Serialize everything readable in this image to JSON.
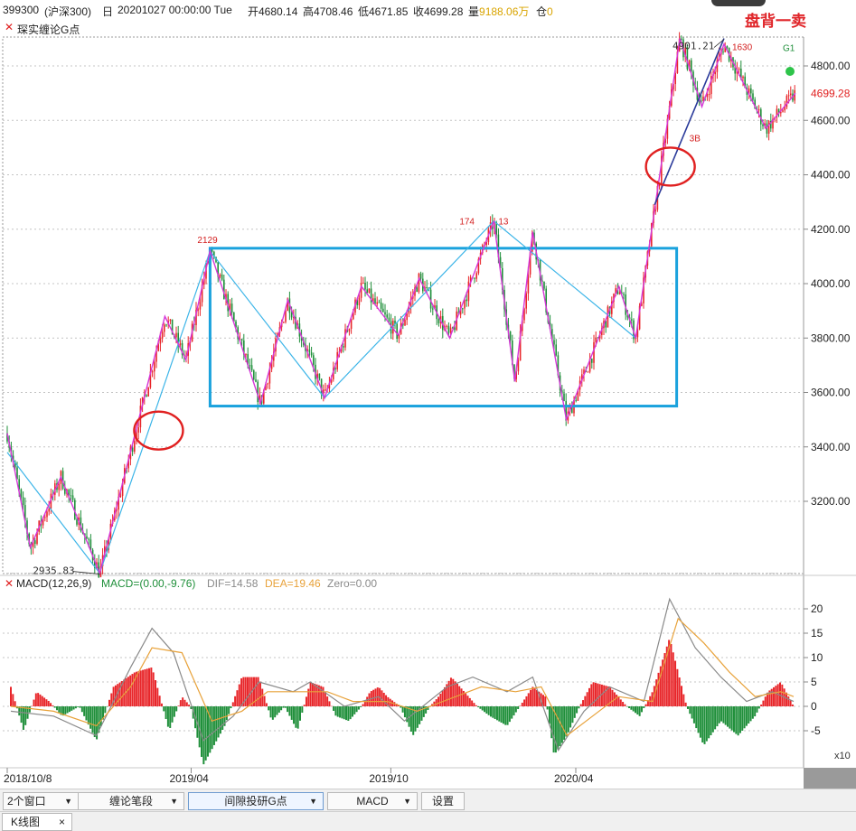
{
  "header": {
    "code": "399300",
    "name": "(沪深300)",
    "period": "日",
    "datetime": "20201027 00:00:00 Tue",
    "open": "开4680.14",
    "high": "高4708.46",
    "low": "低4671.85",
    "close": "收4699.28",
    "volume": "量9188.06万",
    "position_label": "仓",
    "position_value": "0",
    "sell_signal": "盘背一卖"
  },
  "indicator_title": "琛实缠论G点",
  "colors": {
    "up": "#e8262a",
    "down": "#1f8f3a",
    "stroke_line": "#d636d8",
    "segment_line": "#3db5e8",
    "box": "#1aa2dd",
    "circle": "#e02020",
    "trend_line": "#2a3a9a",
    "dif": "#8a8a8a",
    "dea": "#e8a23a",
    "macd_label": "#1f8f3a"
  },
  "chart_data": [
    {
      "type": "candlestick",
      "title": "399300 (沪深300)",
      "xlabel": "",
      "ylabel": "",
      "ylim": [
        2935.83,
        4901.21
      ],
      "y_ticks": [
        3200.0,
        3400.0,
        3600.0,
        3800.0,
        4000.0,
        4200.0,
        4400.0,
        4600.0,
        4800.0
      ],
      "y_tick_labels": [
        "3200.00",
        "3400.00",
        "3600.00",
        "3800.00",
        "4000.00",
        "4200.00",
        "4400.00",
        "4600.00",
        "4800.00"
      ],
      "x_labels": [
        "2018/10/8",
        "2019/04",
        "2019/10",
        "2020/04"
      ],
      "last_price": 4699.28,
      "last_price_label": "4699.28",
      "annotations": [
        {
          "text": "2935.83",
          "value": 2935.83
        },
        {
          "text": "4901.21",
          "value": 4901.21
        },
        {
          "text": "2129"
        },
        {
          "text": "174"
        },
        {
          "text": "13"
        },
        {
          "text": "1630"
        },
        {
          "text": "3B"
        },
        {
          "text": "G1"
        }
      ],
      "stroke_pivots": [
        {
          "date": "2018-10-08",
          "value": 3450
        },
        {
          "date": "2018-10-30",
          "value": 3030
        },
        {
          "date": "2018-11-28",
          "value": 3290
        },
        {
          "date": "2019-01-04",
          "value": 2935.83
        },
        {
          "date": "2019-03-07",
          "value": 3880
        },
        {
          "date": "2019-03-27",
          "value": 3720
        },
        {
          "date": "2019-04-19",
          "value": 4120
        },
        {
          "date": "2019-06-06",
          "value": 3560
        },
        {
          "date": "2019-07-02",
          "value": 3940
        },
        {
          "date": "2019-08-06",
          "value": 3580
        },
        {
          "date": "2019-09-10",
          "value": 3990
        },
        {
          "date": "2019-10-15",
          "value": 3810
        },
        {
          "date": "2019-11-04",
          "value": 4020
        },
        {
          "date": "2019-12-03",
          "value": 3800
        },
        {
          "date": "2020-01-14",
          "value": 4230
        },
        {
          "date": "2020-02-03",
          "value": 3640
        },
        {
          "date": "2020-02-20",
          "value": 4190
        },
        {
          "date": "2020-03-23",
          "value": 3500
        },
        {
          "date": "2020-05-12",
          "value": 3990
        },
        {
          "date": "2020-05-28",
          "value": 3800
        },
        {
          "date": "2020-07-09",
          "value": 4901.21
        },
        {
          "date": "2020-07-30",
          "value": 4650
        },
        {
          "date": "2020-08-20",
          "value": 4880
        },
        {
          "date": "2020-09-29",
          "value": 4570
        },
        {
          "date": "2020-10-27",
          "value": 4699.28
        }
      ],
      "segment_pivots": [
        {
          "date": "2018-10-08",
          "value": 3380
        },
        {
          "date": "2019-01-04",
          "value": 2935.83
        },
        {
          "date": "2019-04-19",
          "value": 4120
        },
        {
          "date": "2019-08-06",
          "value": 3580
        },
        {
          "date": "2020-01-14",
          "value": 4230
        },
        {
          "date": "2020-05-28",
          "value": 3800
        }
      ],
      "trend_line": [
        {
          "date": "2020-06-15",
          "value": 4290
        },
        {
          "date": "2020-08-20",
          "value": 4901.21
        }
      ],
      "pivot_box": {
        "x_start": "2019-04-19",
        "x_end": "2020-07-06",
        "y_low": 3550,
        "y_high": 4130
      },
      "highlight_circles": [
        {
          "date": "2019-03-01",
          "value": 3460
        },
        {
          "date": "2020-06-30",
          "value": 4430
        }
      ]
    },
    {
      "type": "bar",
      "title": "MACD(12,26,9)",
      "params": "(12,26,9)",
      "macd_label": "MACD=(0.00,-9.76)",
      "dif_label": "DIF=14.58",
      "dea_label": "DEA=19.46",
      "zero_label": "Zero=0.00",
      "ylim": [
        -10,
        22
      ],
      "y_ticks": [
        -5,
        0,
        5,
        10,
        15,
        20
      ],
      "y_tick_labels": [
        "-5",
        "0",
        "5",
        "10",
        "15",
        "20"
      ],
      "scale_note": "x10",
      "histogram_points": [
        {
          "t": 0,
          "v": 4
        },
        {
          "t": 0.03,
          "v": -5
        },
        {
          "t": 0.06,
          "v": 3
        },
        {
          "t": 0.09,
          "v": 1
        },
        {
          "t": 0.12,
          "v": -2
        },
        {
          "t": 0.16,
          "v": 0
        },
        {
          "t": 0.2,
          "v": -7
        },
        {
          "t": 0.24,
          "v": 4
        },
        {
          "t": 0.29,
          "v": 7
        },
        {
          "t": 0.33,
          "v": 8
        },
        {
          "t": 0.37,
          "v": -5
        },
        {
          "t": 0.4,
          "v": 2
        },
        {
          "t": 0.42,
          "v": 0
        },
        {
          "t": 0.45,
          "v": -12
        },
        {
          "t": 0.5,
          "v": -4
        },
        {
          "t": 0.54,
          "v": 6
        },
        {
          "t": 0.58,
          "v": 6
        },
        {
          "t": 0.61,
          "v": -3
        },
        {
          "t": 0.64,
          "v": 0
        },
        {
          "t": 0.67,
          "v": -5
        },
        {
          "t": 0.7,
          "v": 5
        },
        {
          "t": 0.73,
          "v": 4
        },
        {
          "t": 0.76,
          "v": -2
        },
        {
          "t": 0.79,
          "v": -3
        },
        {
          "t": 0.82,
          "v": 0
        },
        {
          "t": 0.84,
          "v": 3
        },
        {
          "t": 0.86,
          "v": 4
        },
        {
          "t": 0.88,
          "v": 2
        },
        {
          "t": 0.91,
          "v": 0
        },
        {
          "t": 0.94,
          "v": -6
        },
        {
          "t": 0.98,
          "v": 0
        },
        {
          "t": 1.0,
          "v": 2
        },
        {
          "t": 1.03,
          "v": 6
        },
        {
          "t": 1.06,
          "v": 3
        },
        {
          "t": 1.09,
          "v": 0
        },
        {
          "t": 1.12,
          "v": -2
        },
        {
          "t": 1.16,
          "v": -4
        },
        {
          "t": 1.19,
          "v": 0
        },
        {
          "t": 1.22,
          "v": 4
        },
        {
          "t": 1.25,
          "v": 2
        },
        {
          "t": 1.27,
          "v": -10
        },
        {
          "t": 1.3,
          "v": -6
        },
        {
          "t": 1.33,
          "v": 0
        },
        {
          "t": 1.36,
          "v": 5
        },
        {
          "t": 1.4,
          "v": 4
        },
        {
          "t": 1.44,
          "v": 0
        },
        {
          "t": 1.47,
          "v": -2
        },
        {
          "t": 1.5,
          "v": 3
        },
        {
          "t": 1.54,
          "v": 14
        },
        {
          "t": 1.58,
          "v": 0
        },
        {
          "t": 1.62,
          "v": -8
        },
        {
          "t": 1.66,
          "v": -3
        },
        {
          "t": 1.7,
          "v": -6
        },
        {
          "t": 1.74,
          "v": -2
        },
        {
          "t": 1.77,
          "v": 3
        },
        {
          "t": 1.8,
          "v": 5
        },
        {
          "t": 1.83,
          "v": 0
        }
      ],
      "dif_points": [
        {
          "t": 0,
          "v": -1
        },
        {
          "t": 0.1,
          "v": -2
        },
        {
          "t": 0.2,
          "v": -6
        },
        {
          "t": 0.28,
          "v": 8
        },
        {
          "t": 0.33,
          "v": 16
        },
        {
          "t": 0.38,
          "v": 11
        },
        {
          "t": 0.45,
          "v": -7
        },
        {
          "t": 0.52,
          "v": -2
        },
        {
          "t": 0.58,
          "v": 5
        },
        {
          "t": 0.66,
          "v": 3
        },
        {
          "t": 0.7,
          "v": 5
        },
        {
          "t": 0.78,
          "v": 0
        },
        {
          "t": 0.86,
          "v": 2
        },
        {
          "t": 0.92,
          "v": -3
        },
        {
          "t": 1.02,
          "v": 4
        },
        {
          "t": 1.08,
          "v": 6
        },
        {
          "t": 1.16,
          "v": 3
        },
        {
          "t": 1.22,
          "v": 6
        },
        {
          "t": 1.28,
          "v": -9
        },
        {
          "t": 1.34,
          "v": -1
        },
        {
          "t": 1.4,
          "v": 4
        },
        {
          "t": 1.48,
          "v": 1
        },
        {
          "t": 1.54,
          "v": 22
        },
        {
          "t": 1.6,
          "v": 12
        },
        {
          "t": 1.66,
          "v": 6
        },
        {
          "t": 1.72,
          "v": 1
        },
        {
          "t": 1.78,
          "v": 3
        },
        {
          "t": 1.83,
          "v": 1
        }
      ],
      "dea_points": [
        {
          "t": 0,
          "v": 0
        },
        {
          "t": 0.1,
          "v": -1
        },
        {
          "t": 0.2,
          "v": -4
        },
        {
          "t": 0.28,
          "v": 4
        },
        {
          "t": 0.33,
          "v": 12
        },
        {
          "t": 0.4,
          "v": 11
        },
        {
          "t": 0.47,
          "v": -3
        },
        {
          "t": 0.54,
          "v": -1
        },
        {
          "t": 0.6,
          "v": 3
        },
        {
          "t": 0.68,
          "v": 3
        },
        {
          "t": 0.74,
          "v": 3
        },
        {
          "t": 0.8,
          "v": 1
        },
        {
          "t": 0.88,
          "v": 1
        },
        {
          "t": 0.95,
          "v": -1
        },
        {
          "t": 1.04,
          "v": 2
        },
        {
          "t": 1.1,
          "v": 4
        },
        {
          "t": 1.18,
          "v": 3
        },
        {
          "t": 1.24,
          "v": 4
        },
        {
          "t": 1.3,
          "v": -6
        },
        {
          "t": 1.36,
          "v": -2
        },
        {
          "t": 1.42,
          "v": 2
        },
        {
          "t": 1.5,
          "v": 1
        },
        {
          "t": 1.56,
          "v": 18
        },
        {
          "t": 1.62,
          "v": 13
        },
        {
          "t": 1.68,
          "v": 7
        },
        {
          "t": 1.74,
          "v": 2
        },
        {
          "t": 1.8,
          "v": 3
        },
        {
          "t": 1.83,
          "v": 2
        }
      ]
    }
  ],
  "toolbar": {
    "window_select": "2个窗口",
    "chan_stroke": "缠论笔段",
    "gap_point": "间隙投研G点",
    "indicator": "MACD",
    "settings": "设置"
  },
  "tabs": {
    "kline": "K线图",
    "close_glyph": "×"
  },
  "close_glyph": "✕"
}
